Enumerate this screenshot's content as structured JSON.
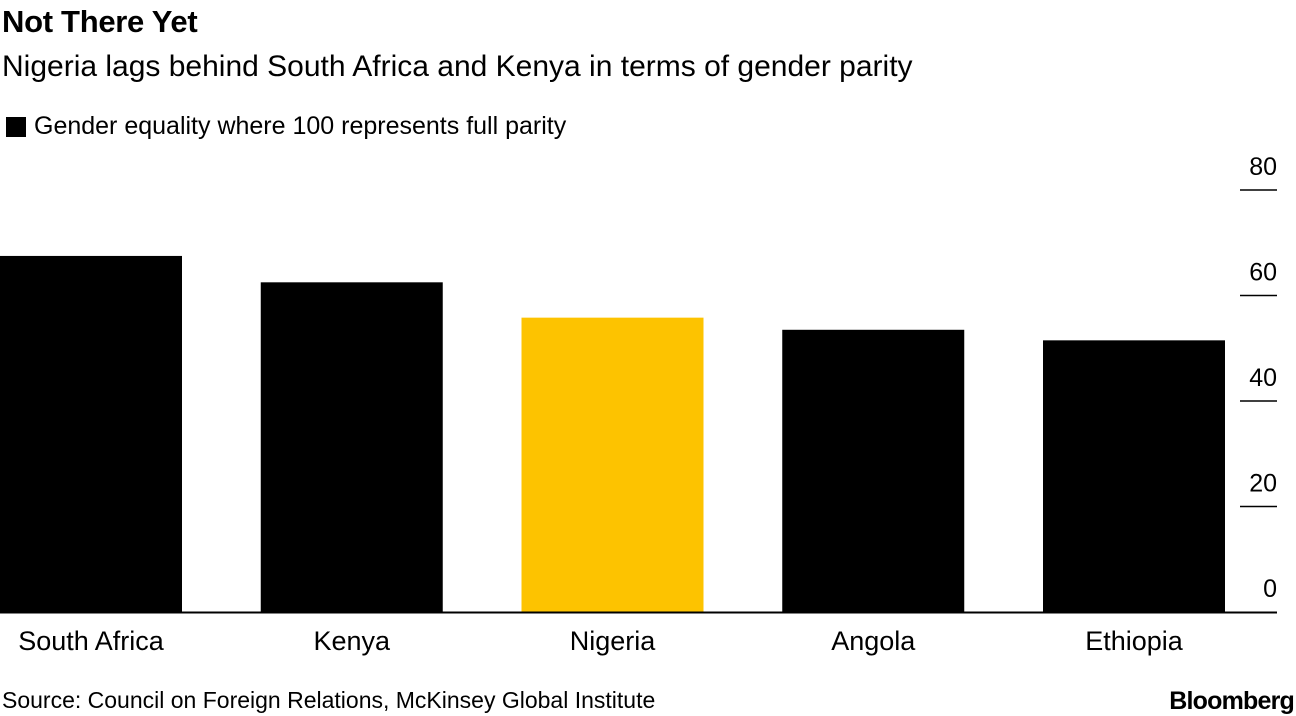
{
  "chart_data": {
    "type": "bar",
    "title": "Not There Yet",
    "subtitle": "Nigeria lags behind South Africa and Kenya in terms of gender parity",
    "legend": [
      {
        "label": "Gender equality where 100 represents full parity",
        "color": "#000000"
      }
    ],
    "categories": [
      "South Africa",
      "Kenya",
      "Nigeria",
      "Angola",
      "Ethiopia"
    ],
    "values": [
      67.5,
      62.5,
      55.8,
      53.5,
      51.5
    ],
    "bar_colors": [
      "#000000",
      "#000000",
      "#fdc300",
      "#000000",
      "#000000"
    ],
    "ylim": [
      0,
      80
    ],
    "yticks": [
      0,
      20,
      40,
      60,
      80
    ],
    "yaxis_side": "right",
    "xlabel": "",
    "ylabel": ""
  },
  "footer": {
    "source": "Source: Council on Foreign Relations, McKinsey Global Institute",
    "brand": "Bloomberg"
  }
}
